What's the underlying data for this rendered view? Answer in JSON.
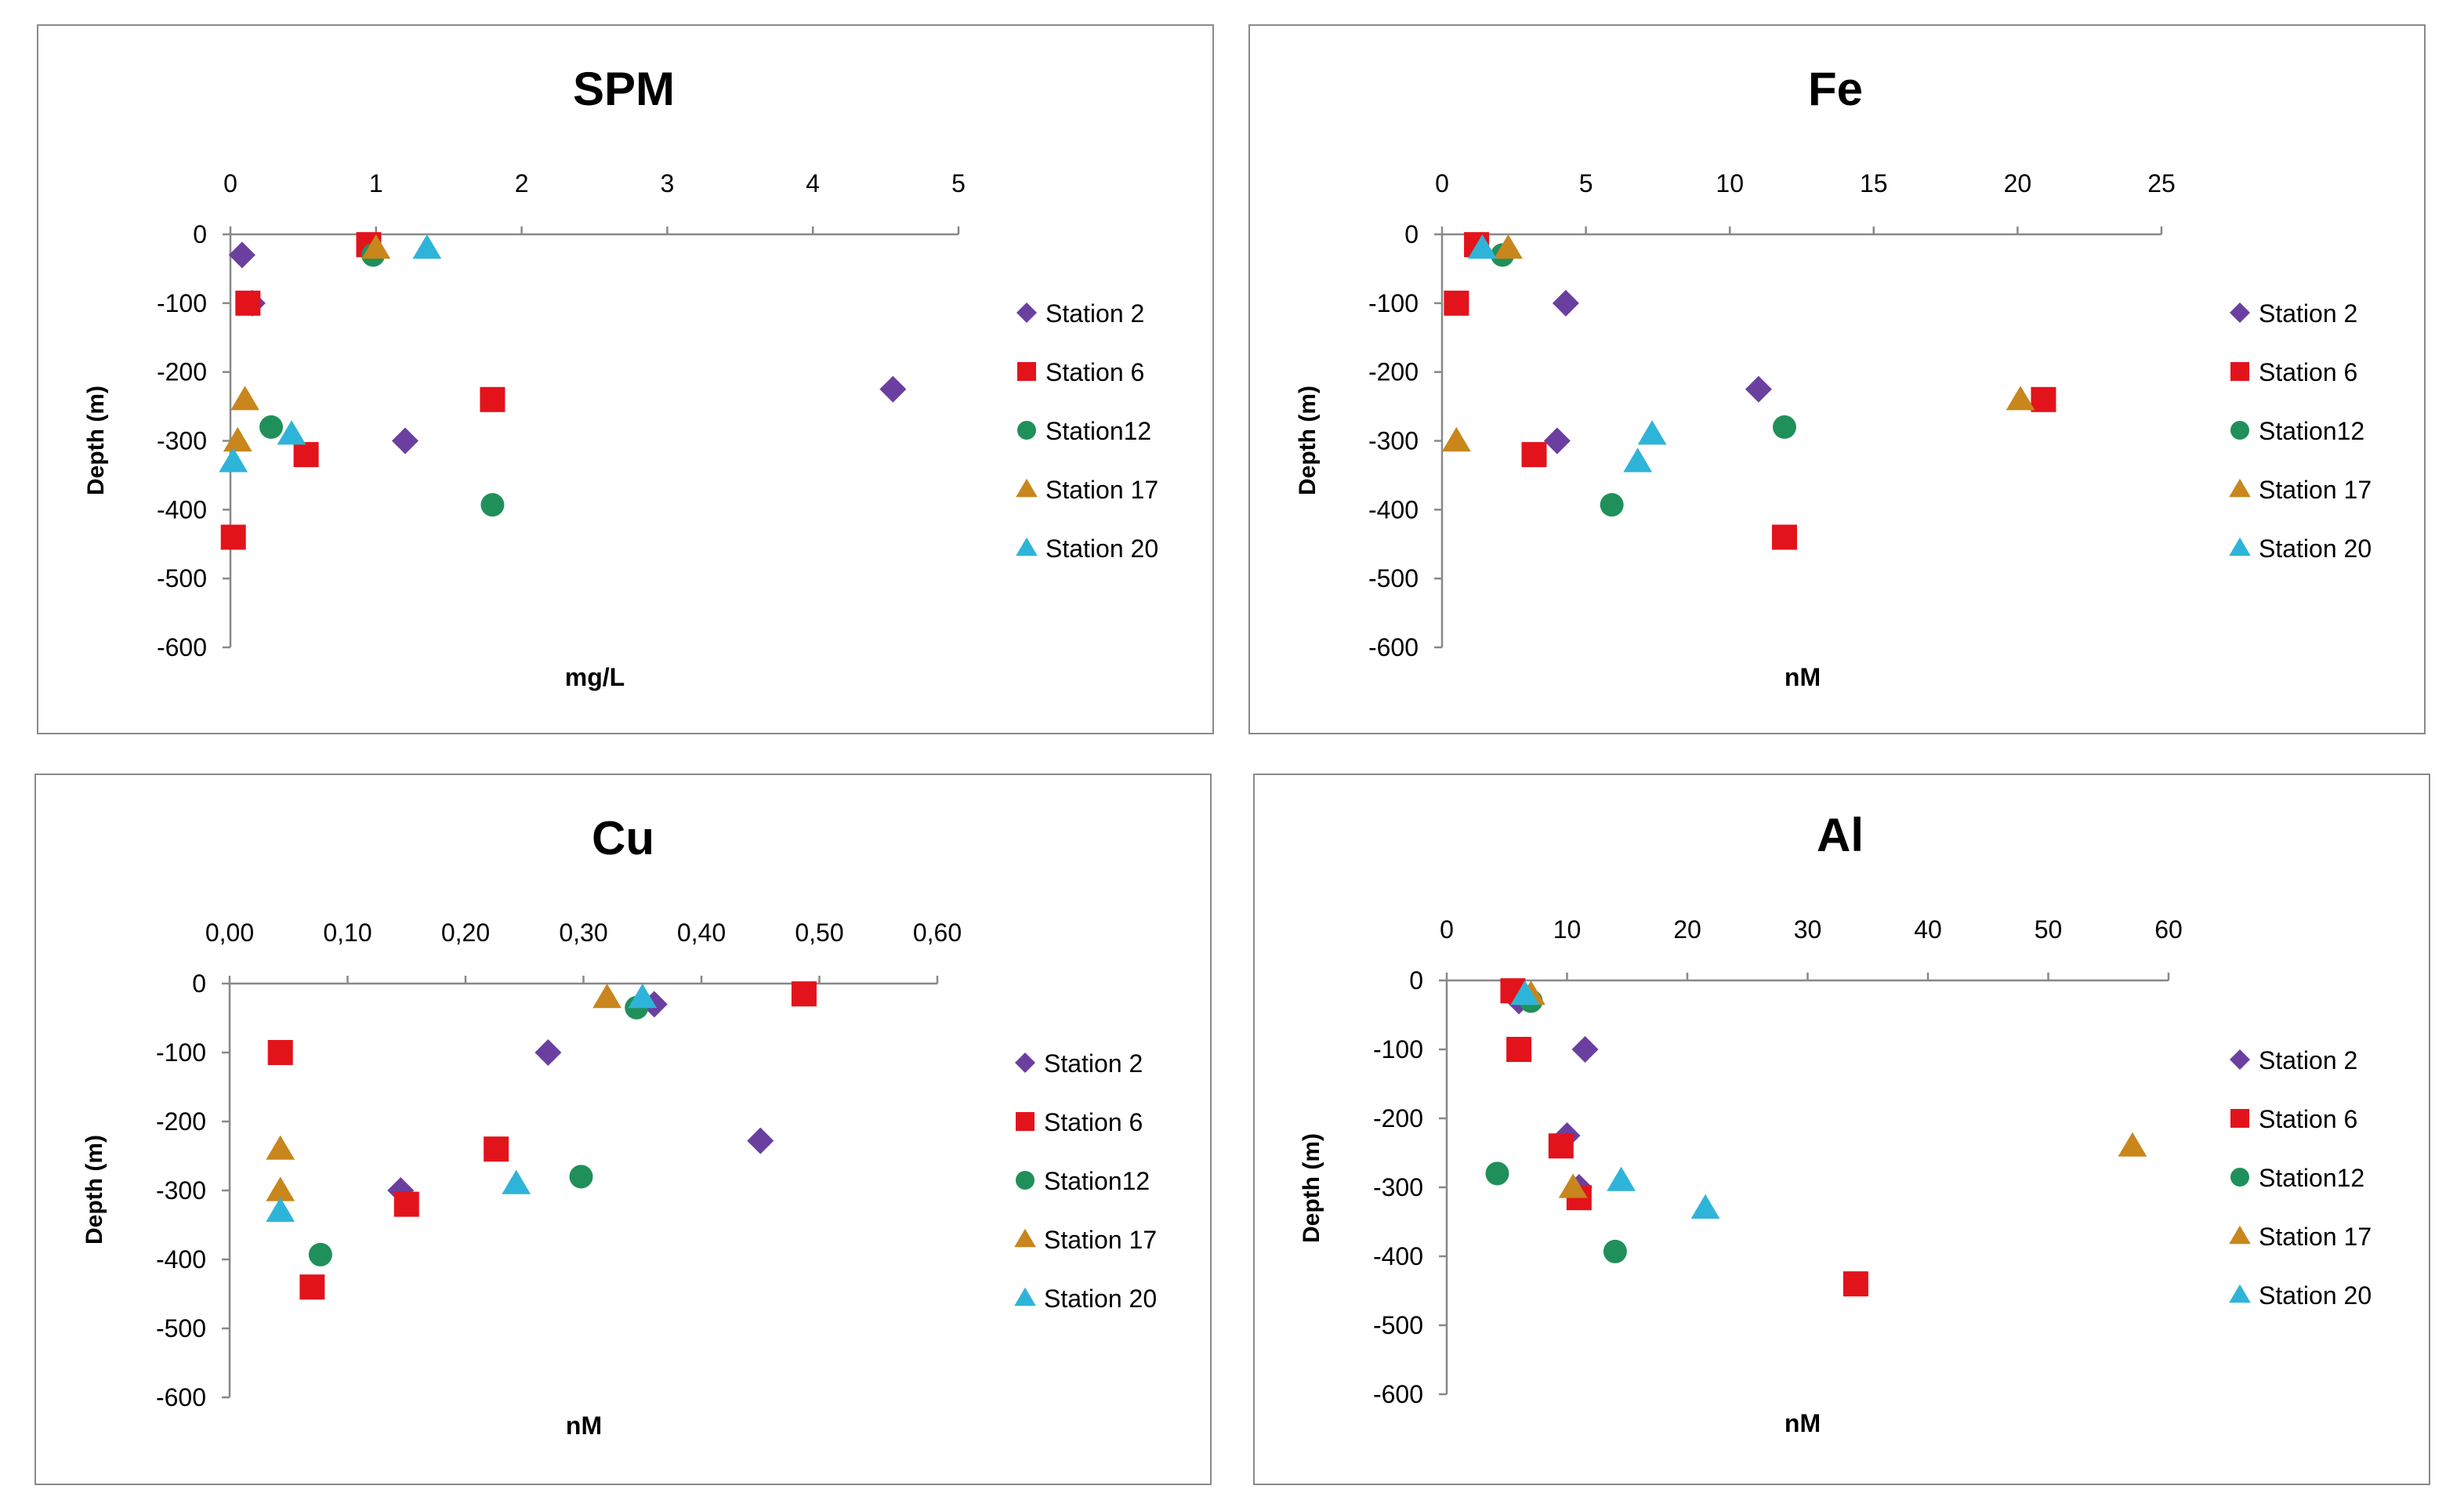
{
  "colors": {
    "Station 2": "#6b3fa0",
    "Station 6": "#e3131b",
    "Station12": "#20905a",
    "Station 17": "#c8861c",
    "Station 20": "#2fb4d9"
  },
  "chart_data": [
    {
      "type": "scatter",
      "title": "SPM",
      "xlabel": "mg/L",
      "ylabel": "Depth (m)",
      "xlim": [
        0,
        5
      ],
      "ylim": [
        -600,
        0
      ],
      "xticks": [
        0,
        1,
        2,
        3,
        4,
        5
      ],
      "xtick_labels": [
        "0",
        "1",
        "2",
        "3",
        "4",
        "5"
      ],
      "yticks": [
        0,
        -100,
        -200,
        -300,
        -400,
        -500,
        -600
      ],
      "ytick_labels": [
        "0",
        "-100",
        "-200",
        "-300",
        "-400",
        "-500",
        "-600"
      ],
      "legend_position": "right",
      "series": [
        {
          "name": "Station 2",
          "marker": "diamond",
          "points": [
            [
              0.08,
              -30
            ],
            [
              0.15,
              -100
            ],
            [
              4.55,
              -225
            ],
            [
              1.2,
              -300
            ]
          ]
        },
        {
          "name": "Station 6",
          "marker": "square",
          "points": [
            [
              0.95,
              -15
            ],
            [
              0.12,
              -100
            ],
            [
              1.8,
              -240
            ],
            [
              0.52,
              -320
            ],
            [
              0.02,
              -440
            ]
          ]
        },
        {
          "name": "Station12",
          "marker": "circle",
          "points": [
            [
              0.98,
              -30
            ],
            [
              0.28,
              -280
            ],
            [
              1.8,
              -393
            ]
          ]
        },
        {
          "name": "Station 17",
          "marker": "triangle",
          "points": [
            [
              1.0,
              -20
            ],
            [
              0.1,
              -240
            ],
            [
              0.05,
              -300
            ]
          ]
        },
        {
          "name": "Station 20",
          "marker": "triangle",
          "points": [
            [
              1.35,
              -20
            ],
            [
              0.42,
              -290
            ],
            [
              0.02,
              -330
            ]
          ]
        }
      ]
    },
    {
      "type": "scatter",
      "title": "Fe",
      "xlabel": "nM",
      "ylabel": "Depth (m)",
      "xlim": [
        0,
        25
      ],
      "ylim": [
        -600,
        0
      ],
      "xticks": [
        0,
        5,
        10,
        15,
        20,
        25
      ],
      "xtick_labels": [
        "0",
        "5",
        "10",
        "15",
        "20",
        "25"
      ],
      "yticks": [
        0,
        -100,
        -200,
        -300,
        -400,
        -500,
        -600
      ],
      "ytick_labels": [
        "0",
        "-100",
        "-200",
        "-300",
        "-400",
        "-500",
        "-600"
      ],
      "legend_position": "right",
      "series": [
        {
          "name": "Station 2",
          "marker": "diamond",
          "points": [
            [
              4.3,
              -100
            ],
            [
              11.0,
              -225
            ],
            [
              4.0,
              -300
            ]
          ]
        },
        {
          "name": "Station 6",
          "marker": "square",
          "points": [
            [
              1.2,
              -15
            ],
            [
              0.5,
              -100
            ],
            [
              20.9,
              -240
            ],
            [
              3.2,
              -320
            ],
            [
              11.9,
              -440
            ]
          ]
        },
        {
          "name": "Station12",
          "marker": "circle",
          "points": [
            [
              2.1,
              -30
            ],
            [
              11.9,
              -280
            ],
            [
              5.9,
              -393
            ]
          ]
        },
        {
          "name": "Station 17",
          "marker": "triangle",
          "points": [
            [
              2.3,
              -20
            ],
            [
              20.1,
              -240
            ],
            [
              0.5,
              -300
            ]
          ]
        },
        {
          "name": "Station 20",
          "marker": "triangle",
          "points": [
            [
              1.4,
              -20
            ],
            [
              7.3,
              -290
            ],
            [
              6.8,
              -330
            ]
          ]
        }
      ]
    },
    {
      "type": "scatter",
      "title": "Cu",
      "xlabel": "nM",
      "ylabel": "Depth (m)",
      "xlim": [
        0,
        0.6
      ],
      "ylim": [
        -600,
        0
      ],
      "xticks": [
        0,
        0.1,
        0.2,
        0.3,
        0.4,
        0.5,
        0.6
      ],
      "xtick_labels": [
        "0,00",
        "0,10",
        "0,20",
        "0,30",
        "0,40",
        "0,50",
        "0,60"
      ],
      "yticks": [
        0,
        -100,
        -200,
        -300,
        -400,
        -500,
        -600
      ],
      "ytick_labels": [
        "0",
        "-100",
        "-200",
        "-300",
        "-400",
        "-500",
        "-600"
      ],
      "legend_position": "right",
      "series": [
        {
          "name": "Station 2",
          "marker": "diamond",
          "points": [
            [
              0.36,
              -30
            ],
            [
              0.27,
              -100
            ],
            [
              0.45,
              -228
            ],
            [
              0.145,
              -300
            ]
          ]
        },
        {
          "name": "Station 6",
          "marker": "square",
          "points": [
            [
              0.487,
              -15
            ],
            [
              0.043,
              -100
            ],
            [
              0.226,
              -240
            ],
            [
              0.15,
              -320
            ],
            [
              0.07,
              -440
            ]
          ]
        },
        {
          "name": "Station12",
          "marker": "circle",
          "points": [
            [
              0.345,
              -35
            ],
            [
              0.298,
              -280
            ],
            [
              0.077,
              -393
            ]
          ]
        },
        {
          "name": "Station 17",
          "marker": "triangle",
          "points": [
            [
              0.32,
              -20
            ],
            [
              0.043,
              -240
            ],
            [
              0.043,
              -300
            ]
          ]
        },
        {
          "name": "Station 20",
          "marker": "triangle",
          "points": [
            [
              0.35,
              -20
            ],
            [
              0.243,
              -290
            ],
            [
              0.043,
              -330
            ]
          ]
        }
      ]
    },
    {
      "type": "scatter",
      "title": "Al",
      "xlabel": "nM",
      "ylabel": "Depth (m)",
      "xlim": [
        0,
        60
      ],
      "ylim": [
        -600,
        0
      ],
      "xticks": [
        0,
        10,
        20,
        30,
        40,
        50,
        60
      ],
      "xtick_labels": [
        "0",
        "10",
        "20",
        "30",
        "40",
        "50",
        "60"
      ],
      "yticks": [
        0,
        -100,
        -200,
        -300,
        -400,
        -500,
        -600
      ],
      "ytick_labels": [
        "0",
        "-100",
        "-200",
        "-300",
        "-400",
        "-500",
        "-600"
      ],
      "legend_position": "right",
      "series": [
        {
          "name": "Station 2",
          "marker": "diamond",
          "points": [
            [
              6.0,
              -30
            ],
            [
              11.5,
              -100
            ],
            [
              10.0,
              -225
            ],
            [
              11.0,
              -300
            ]
          ]
        },
        {
          "name": "Station 6",
          "marker": "square",
          "points": [
            [
              5.5,
              -15
            ],
            [
              6.0,
              -100
            ],
            [
              9.5,
              -240
            ],
            [
              11.0,
              -315
            ],
            [
              34.0,
              -440
            ]
          ]
        },
        {
          "name": "Station12",
          "marker": "circle",
          "points": [
            [
              7.0,
              -30
            ],
            [
              4.2,
              -280
            ],
            [
              14.0,
              -393
            ]
          ]
        },
        {
          "name": "Station 17",
          "marker": "triangle",
          "points": [
            [
              7.0,
              -20
            ],
            [
              57.0,
              -240
            ],
            [
              10.5,
              -300
            ]
          ]
        },
        {
          "name": "Station 20",
          "marker": "triangle",
          "points": [
            [
              6.5,
              -20
            ],
            [
              14.5,
              -290
            ],
            [
              21.5,
              -330
            ]
          ]
        }
      ]
    }
  ]
}
